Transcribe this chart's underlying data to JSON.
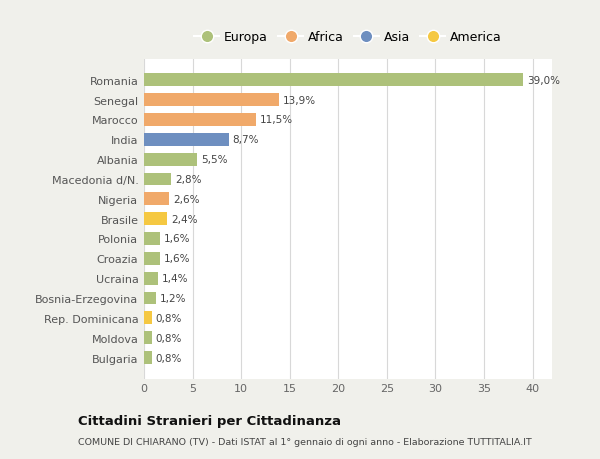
{
  "countries": [
    "Romania",
    "Senegal",
    "Marocco",
    "India",
    "Albania",
    "Macedonia d/N.",
    "Nigeria",
    "Brasile",
    "Polonia",
    "Croazia",
    "Ucraina",
    "Bosnia-Erzegovina",
    "Rep. Dominicana",
    "Moldova",
    "Bulgaria"
  ],
  "values": [
    39.0,
    13.9,
    11.5,
    8.7,
    5.5,
    2.8,
    2.6,
    2.4,
    1.6,
    1.6,
    1.4,
    1.2,
    0.8,
    0.8,
    0.8
  ],
  "labels": [
    "39,0%",
    "13,9%",
    "11,5%",
    "8,7%",
    "5,5%",
    "2,8%",
    "2,6%",
    "2,4%",
    "1,6%",
    "1,6%",
    "1,4%",
    "1,2%",
    "0,8%",
    "0,8%",
    "0,8%"
  ],
  "continent": [
    "Europa",
    "Africa",
    "Africa",
    "Asia",
    "Europa",
    "Europa",
    "Africa",
    "America",
    "Europa",
    "Europa",
    "Europa",
    "Europa",
    "America",
    "Europa",
    "Europa"
  ],
  "colors": {
    "Europa": "#adc17a",
    "Africa": "#f0a96a",
    "Asia": "#6e8fc0",
    "America": "#f5c842"
  },
  "legend_colors": {
    "Europa": "#adc17a",
    "Africa": "#f0a96a",
    "Asia": "#6e8fc0",
    "America": "#f5c842"
  },
  "fig_background": "#f0f0eb",
  "plot_background": "#ffffff",
  "title": "Cittadini Stranieri per Cittadinanza",
  "subtitle": "COMUNE DI CHIARANO (TV) - Dati ISTAT al 1° gennaio di ogni anno - Elaborazione TUTTITALIA.IT",
  "xlim": [
    0,
    42
  ],
  "xticks": [
    0,
    5,
    10,
    15,
    20,
    25,
    30,
    35,
    40
  ],
  "grid_color": "#d8d8d8",
  "legend_order": [
    "Europa",
    "Africa",
    "Asia",
    "America"
  ]
}
